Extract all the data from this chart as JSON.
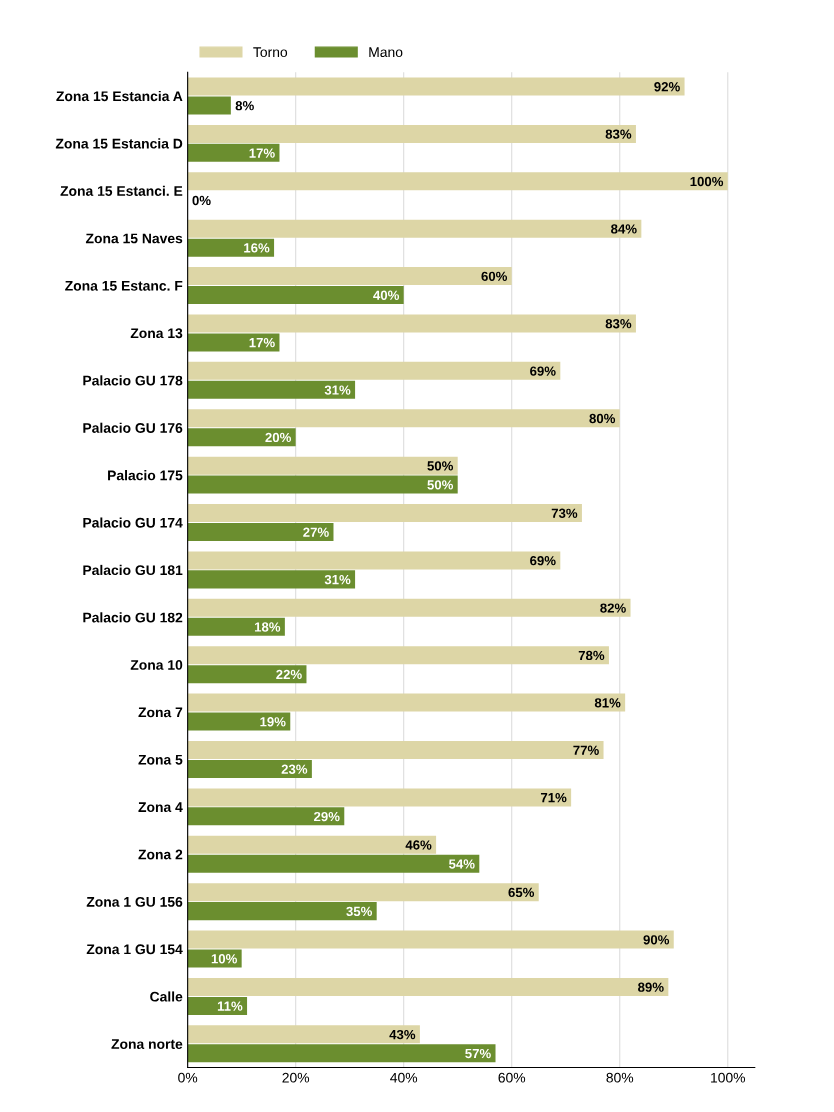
{
  "chart_data": {
    "type": "bar",
    "orientation": "horizontal",
    "categories": [
      "Zona 15 Estancia A",
      "Zona 15 Estancia D",
      "Zona 15 Estanci. E",
      "Zona 15 Naves",
      "Zona 15 Estanc. F",
      "Zona 13",
      "Palacio GU 178",
      "Palacio GU 176",
      "Palacio 175",
      "Palacio GU 174",
      "Palacio GU 181",
      "Palacio GU 182",
      "Zona 10",
      "Zona 7",
      "Zona 5",
      "Zona 4",
      "Zona 2",
      "Zona 1 GU 156",
      "Zona 1 GU 154",
      "Calle",
      "Zona norte"
    ],
    "series": [
      {
        "name": "Torno",
        "color": "#ddd6a6",
        "values": [
          92,
          83,
          100,
          84,
          60,
          83,
          69,
          80,
          50,
          73,
          69,
          82,
          78,
          81,
          77,
          71,
          46,
          65,
          90,
          89,
          43
        ],
        "value_labels": [
          "92%",
          "83%",
          "100%",
          "84%",
          "60%",
          "83%",
          "69%",
          "80%",
          "50%",
          "73%",
          "69%",
          "82%",
          "78%",
          "81%",
          "77%",
          "71%",
          "46%",
          "65%",
          "90%",
          "89%",
          "43%"
        ]
      },
      {
        "name": "Mano",
        "color": "#6b8e2f",
        "values": [
          8,
          17,
          0,
          16,
          40,
          17,
          31,
          20,
          50,
          27,
          31,
          18,
          22,
          19,
          23,
          29,
          54,
          35,
          10,
          11,
          57
        ],
        "value_labels": [
          "8%",
          "17%",
          "0%",
          "16%",
          "40%",
          "17%",
          "31%",
          "20%",
          "50%",
          "27%",
          "31%",
          "18%",
          "22%",
          "19%",
          "23%",
          "29%",
          "54%",
          "35%",
          "10%",
          "11%",
          "57%"
        ]
      }
    ],
    "xlim": [
      0,
      105
    ],
    "xticks": [
      {
        "value": 0,
        "label": "0%"
      },
      {
        "value": 20,
        "label": "20%"
      },
      {
        "value": 40,
        "label": "40%"
      },
      {
        "value": 60,
        "label": "60%"
      },
      {
        "value": 80,
        "label": "80%"
      },
      {
        "value": 100,
        "label": "100%"
      }
    ],
    "grid": "x",
    "legend": "top left"
  }
}
